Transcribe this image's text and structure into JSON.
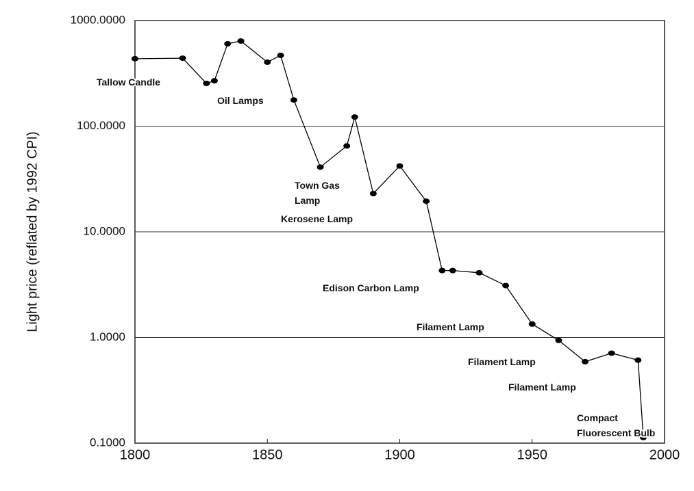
{
  "chart_data": {
    "type": "line",
    "y_label": "Light price (reflated by 1992 CPI)",
    "x": [
      1800,
      1818,
      1827,
      1830,
      1835,
      1840,
      1850,
      1855,
      1860,
      1870,
      1880,
      1883,
      1890,
      1900,
      1910,
      1916,
      1920,
      1930,
      1940,
      1950,
      1960,
      1970,
      1980,
      1990,
      1992
    ],
    "series": [
      {
        "name": "Light price",
        "color": "#000000",
        "values": [
          435,
          440,
          254,
          269,
          603,
          640,
          403,
          468,
          177,
          41,
          65,
          122,
          23,
          42,
          19.5,
          4.3,
          4.3,
          4.1,
          3.1,
          1.34,
          0.94,
          0.59,
          0.71,
          0.61,
          0.113
        ]
      }
    ],
    "xlim": [
      1800,
      2000
    ],
    "xticks": [
      1800,
      1850,
      1900,
      1950,
      2000
    ],
    "ylim": [
      0.1,
      1000
    ],
    "log_y": true,
    "grid": true,
    "yticks": [
      {
        "value": 0.1,
        "label": "0.1000"
      },
      {
        "value": 1,
        "label": "1.0000"
      },
      {
        "value": 10,
        "label": "10.0000"
      },
      {
        "value": 100,
        "label": "100.0000"
      },
      {
        "value": 1000,
        "label": "1000.0000"
      }
    ],
    "annotations": [
      [
        "Tallow Candle"
      ],
      [
        "Oil Lamps"
      ],
      [
        "Town Gas",
        "Lamp"
      ],
      [
        "Kerosene Lamp"
      ],
      [
        "Edison Carbon Lamp"
      ],
      [
        "Filament Lamp"
      ],
      [
        "Filament Lamp"
      ],
      [
        "Filament Lamp"
      ],
      [
        "Compact",
        "Fluorescent Bulb"
      ]
    ]
  }
}
